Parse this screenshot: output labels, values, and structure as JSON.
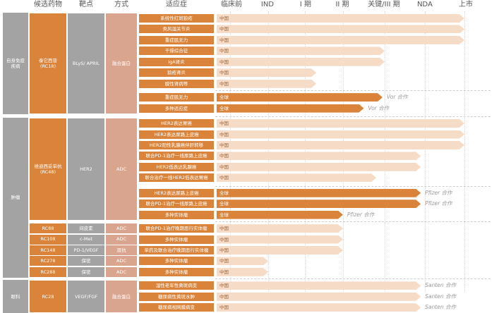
{
  "headers": {
    "drug": "候选药物",
    "target": "靶点",
    "mode": "方式",
    "indication": "适应症",
    "stages": [
      "临床前",
      "IND",
      "I 期",
      "II 期",
      "关键/III 期",
      "NDA",
      "上市"
    ]
  },
  "colors": {
    "area_gray": "#a3a3a3",
    "drug_orange": "#d9843a",
    "target_gray": "#a3a3a3",
    "mode_salmon": "#daa58f",
    "china_bar": "#f6dcc6",
    "global_bar": "#d9843a"
  },
  "groups": [
    {
      "area": "自身免疫疾病",
      "drug": "泰它西普 (RC18)",
      "target": "BLyS/ APRIL",
      "mode": "融合蛋白"
    },
    {
      "area": "肿瘤",
      "drug": "维迪西妥单抗 (RC48)",
      "target": "HER2",
      "mode": "ADC"
    },
    {
      "drug": "RC88",
      "target": "间皮素",
      "mode": "ADC"
    },
    {
      "drug": "RC108",
      "target": "c-Met",
      "mode": "ADC"
    },
    {
      "drug": "RC148",
      "target": "PD-1/VEGF",
      "mode": "双抗"
    },
    {
      "drug": "RC278",
      "target": "保密",
      "mode": "ADC"
    },
    {
      "drug": "RC288",
      "target": "保密",
      "mode": "ADC"
    },
    {
      "area": "眼科",
      "drug": "RC28",
      "target": "VEGF/FGF",
      "mode": "融合蛋白"
    }
  ],
  "chart_data": {
    "type": "bar",
    "stages": [
      "临床前",
      "IND",
      "I 期",
      "II 期",
      "关键/III 期",
      "NDA",
      "上市"
    ],
    "rows": [
      {
        "indication": "系统性红斑狼疮",
        "region": "中国",
        "stage": 6.0,
        "partner": ""
      },
      {
        "indication": "类风湿关节炎",
        "region": "中国",
        "stage": 6.0,
        "partner": ""
      },
      {
        "indication": "重症肌无力",
        "region": "中国",
        "stage": 6.0,
        "partner": ""
      },
      {
        "indication": "干燥综合征",
        "region": "中国",
        "stage": 4.0,
        "partner": ""
      },
      {
        "indication": "IgA肾炎",
        "region": "中国",
        "stage": 4.0,
        "partner": ""
      },
      {
        "indication": "狼疮肾炎",
        "region": "中国",
        "stage": 2.3,
        "partner": ""
      },
      {
        "indication": "膜性肾病等",
        "region": "中国",
        "stage": 2.3,
        "partner": ""
      },
      {
        "indication": "重症肌无力",
        "region": "全球",
        "stage": 3.95,
        "partner": "Vor 合作"
      },
      {
        "indication": "多种适应症",
        "region": "全球",
        "stage": 3.5,
        "partner": "Vor 合作"
      },
      {
        "indication": "HER2表达胃癌",
        "region": "中国",
        "stage": 6.0,
        "partner": ""
      },
      {
        "indication": "HER2表达尿路上皮癌",
        "region": "中国",
        "stage": 6.0,
        "partner": ""
      },
      {
        "indication": "HER2阳性乳腺癌伴肝转移",
        "region": "中国",
        "stage": 6.0,
        "partner": ""
      },
      {
        "indication": "联合PD-1治疗一线尿路上皮癌",
        "region": "中国",
        "stage": 4.9,
        "partner": ""
      },
      {
        "indication": "HER2低表达乳腺癌",
        "region": "中国",
        "stage": 4.9,
        "partner": ""
      },
      {
        "indication": "联合治疗一线HER2低表达胃癌",
        "region": "中国",
        "stage": 3.8,
        "partner": ""
      },
      {
        "indication": "HER2表达尿路上皮癌",
        "region": "全球",
        "stage": 4.9,
        "partner": "Pfizer 合作"
      },
      {
        "indication": "联合PD-1治疗一线尿路上皮癌",
        "region": "全球",
        "stage": 4.9,
        "partner": "Pfizer 合作"
      },
      {
        "indication": "多种实体瘤",
        "region": "全球",
        "stage": 3.0,
        "partner": "Pfizer 合作"
      },
      {
        "indication": "联合PD-1治疗晚期恶行实体瘤",
        "region": "中国",
        "stage": 3.0,
        "partner": ""
      },
      {
        "indication": "多种实体瘤",
        "region": "中国",
        "stage": 3.0,
        "partner": ""
      },
      {
        "indication": "单药及联合治疗晚期恶行实体瘤",
        "region": "中国",
        "stage": 3.0,
        "partner": ""
      },
      {
        "indication": "多种实体瘤",
        "region": "中国",
        "stage": 1.0,
        "partner": ""
      },
      {
        "indication": "多种实体瘤",
        "region": "中国",
        "stage": 1.0,
        "partner": ""
      },
      {
        "indication": "湿性老年性黄斑病变",
        "region": "中国",
        "stage": 4.9,
        "partner": "Santen 合作"
      },
      {
        "indication": "糖尿病性黄斑水肿",
        "region": "中国",
        "stage": 4.9,
        "partner": "Santen 合作"
      },
      {
        "indication": "糖尿病视网膜病变",
        "region": "中国",
        "stage": 4.9,
        "partner": "Santen 合作"
      }
    ]
  }
}
